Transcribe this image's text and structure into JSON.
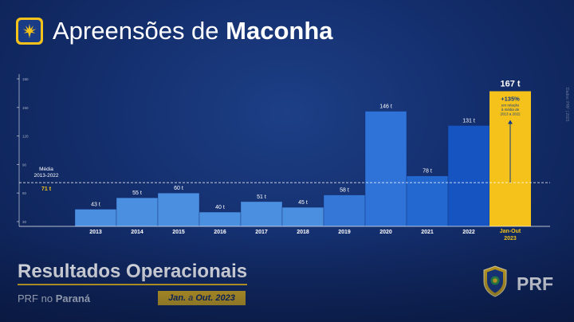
{
  "header": {
    "title_prefix": "Apreensões de",
    "title_bold": "Maconha",
    "icon": "cannabis-leaf-icon"
  },
  "chart_data": {
    "type": "bar",
    "categories": [
      "2013",
      "2014",
      "2015",
      "2016",
      "2017",
      "2018",
      "2019",
      "2020",
      "2021",
      "2022",
      "Jan-Out 2023"
    ],
    "values": [
      43,
      55,
      60,
      40,
      51,
      45,
      58,
      146,
      78,
      131,
      167
    ],
    "value_labels": [
      "43 t",
      "55 t",
      "60 t",
      "40 t",
      "51 t",
      "45 t",
      "58 t",
      "146 t",
      "78 t",
      "131 t",
      "167 t"
    ],
    "y_ticks": [
      30,
      60,
      90,
      120,
      150,
      180
    ],
    "ylim": [
      25,
      185
    ],
    "colors": [
      "#4b8fe0",
      "#4b8fe0",
      "#4b8fe0",
      "#4b8fe0",
      "#4b8fe0",
      "#4b8fe0",
      "#3577d6",
      "#2f72d8",
      "#2368d0",
      "#1654c2",
      "#f4c21a"
    ],
    "average": {
      "value": 71,
      "label_line1": "Média",
      "label_line2": "2013-2022",
      "value_label": "71 t"
    },
    "annotation": {
      "percent": "+135%",
      "text_lines": [
        "em relação",
        "à média de",
        "2013 a 2022"
      ]
    },
    "grid": false
  },
  "side_note": "Dados: PRF | 2023",
  "footer": {
    "title": "Resultados Operacionais",
    "sub_prefix": "PRF",
    "sub_mid": "no",
    "sub_state": "Paraná",
    "period_a": "Jan.",
    "period_b": "a",
    "period_c": "Out. 2023",
    "brand": "PRF",
    "badge_icon": "prf-police-badge-icon"
  },
  "colors": {
    "background": "#142f6e",
    "accent": "#f4c21a",
    "bar_blue": "#4b8fe0"
  }
}
